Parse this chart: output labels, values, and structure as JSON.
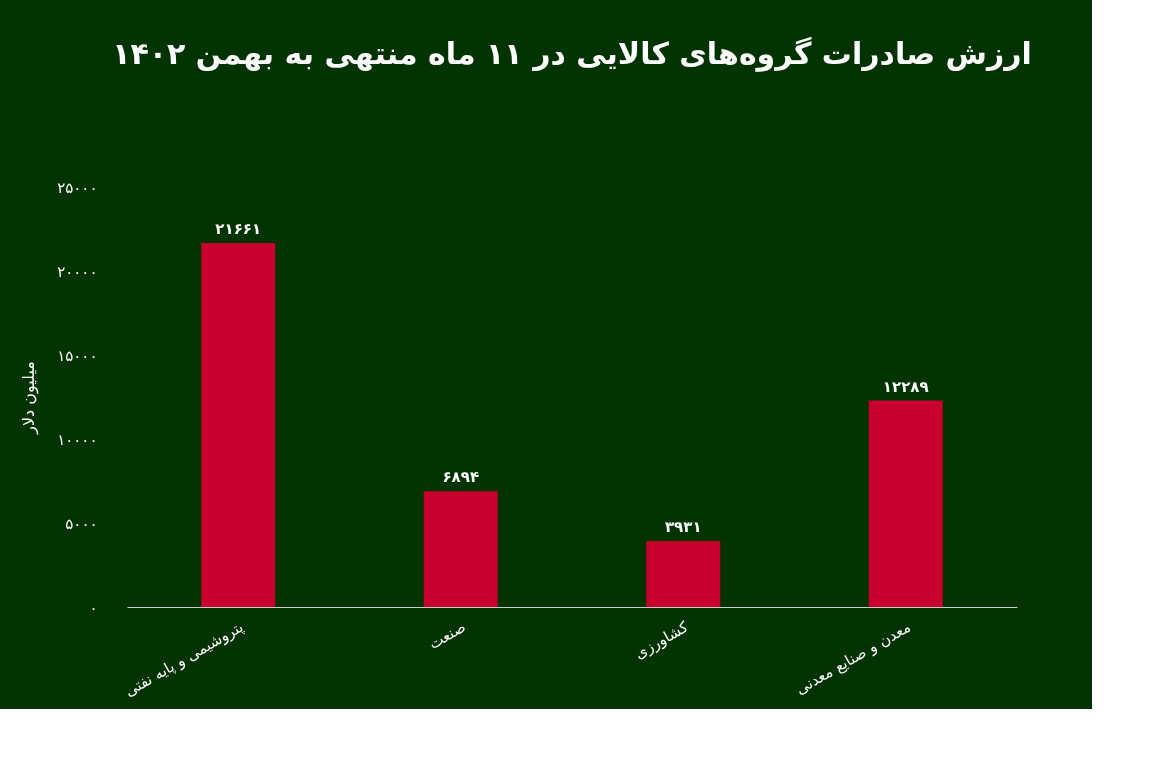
{
  "chart_data": {
    "type": "bar",
    "title": "ارزش صادرات گروه‌های کالایی در ۱۱ ماه منتهی به بهمن ۱۴۰۲",
    "ylabel": "میلیون دلار",
    "categories": [
      "پتروشیمی و پایه نفتی",
      "صنعت",
      "کشاورزی",
      "معدن و صنایع معدنی"
    ],
    "values": [
      21661,
      6894,
      3931,
      12289
    ],
    "value_labels": [
      "۲۱۶۶۱",
      "۶۸۹۴",
      "۳۹۳۱",
      "۱۲۲۸۹"
    ],
    "color": "#c8002e",
    "ylim": [
      0,
      25000
    ],
    "yticks": [
      {
        "value": 0,
        "label": "۰"
      },
      {
        "value": 5000,
        "label": "۵۰۰۰"
      },
      {
        "value": 10000,
        "label": "۱۰۰۰۰"
      },
      {
        "value": 15000,
        "label": "۱۵۰۰۰"
      },
      {
        "value": 20000,
        "label": "۲۰۰۰۰"
      },
      {
        "value": 25000,
        "label": "۲۵۰۰۰"
      }
    ],
    "grid": false
  }
}
